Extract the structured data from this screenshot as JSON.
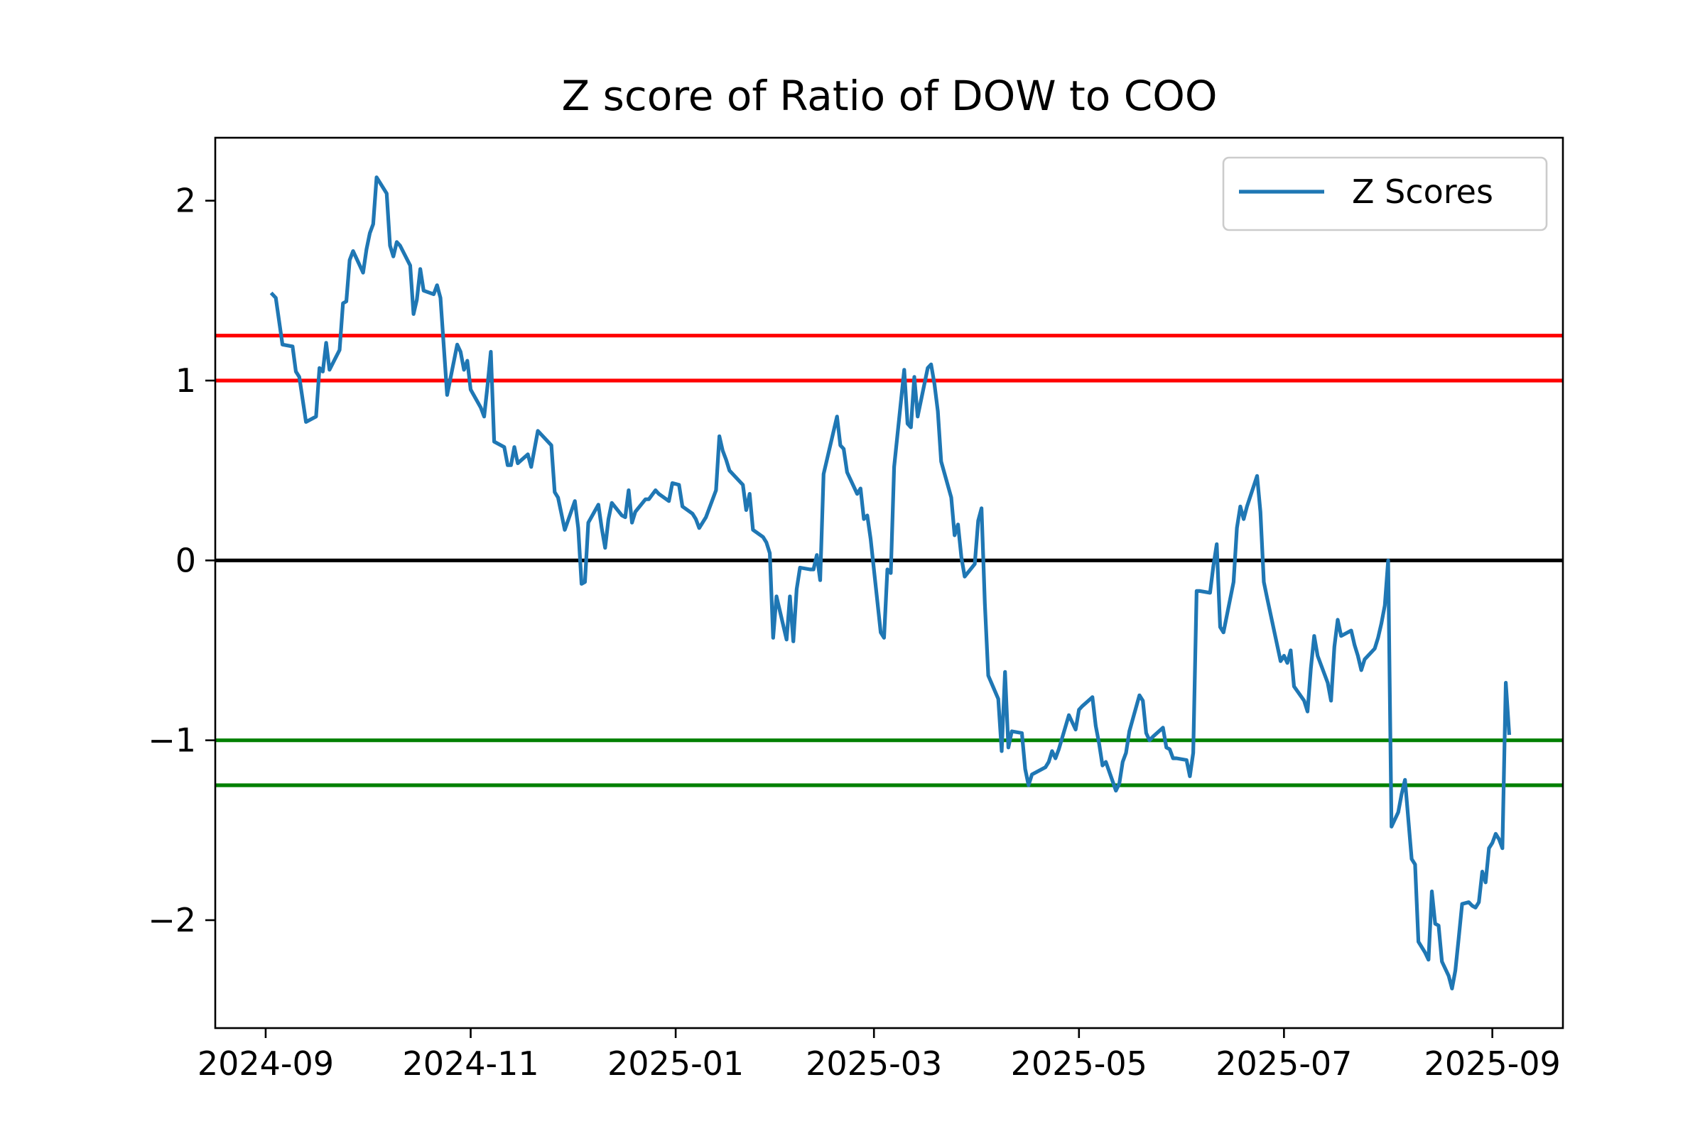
{
  "chart_data": {
    "type": "line",
    "title": "Z score of Ratio of DOW to COO",
    "xlabel": "",
    "ylabel": "",
    "xlim": [
      "2024-08-17",
      "2025-09-22"
    ],
    "ylim": [
      -2.6,
      2.35
    ],
    "grid": false,
    "legend": {
      "placement": "upper right",
      "entries": [
        "Z Scores"
      ]
    },
    "x_ticks": [
      "2024-09",
      "2024-11",
      "2025-01",
      "2025-03",
      "2025-05",
      "2025-07",
      "2025-09"
    ],
    "x_tick_dates": [
      "2024-09-01",
      "2024-11-01",
      "2025-01-01",
      "2025-03-01",
      "2025-05-01",
      "2025-07-01",
      "2025-09-01"
    ],
    "y_ticks": [
      2,
      1,
      0,
      -1,
      -2
    ],
    "y_tick_labels": [
      "2",
      "1",
      "0",
      "−1",
      "−2"
    ],
    "hlines": [
      {
        "y": 1.25,
        "color": "#ff0000"
      },
      {
        "y": 1.0,
        "color": "#ff0000"
      },
      {
        "y": 0.0,
        "color": "#000000"
      },
      {
        "y": -1.0,
        "color": "#008000"
      },
      {
        "y": -1.25,
        "color": "#008000"
      }
    ],
    "series": [
      {
        "name": "Z Scores",
        "color": "#1f77b4",
        "points": [
          [
            "2024-09-03",
            1.48
          ],
          [
            "2024-09-04",
            1.46
          ],
          [
            "2024-09-06",
            1.2
          ],
          [
            "2024-09-09",
            1.19
          ],
          [
            "2024-09-10",
            1.05
          ],
          [
            "2024-09-11",
            1.02
          ],
          [
            "2024-09-13",
            0.77
          ],
          [
            "2024-09-16",
            0.8
          ],
          [
            "2024-09-17",
            1.07
          ],
          [
            "2024-09-18",
            1.05
          ],
          [
            "2024-09-19",
            1.21
          ],
          [
            "2024-09-20",
            1.06
          ],
          [
            "2024-09-23",
            1.17
          ],
          [
            "2024-09-24",
            1.43
          ],
          [
            "2024-09-25",
            1.44
          ],
          [
            "2024-09-26",
            1.67
          ],
          [
            "2024-09-27",
            1.72
          ],
          [
            "2024-09-30",
            1.6
          ],
          [
            "2024-10-01",
            1.73
          ],
          [
            "2024-10-02",
            1.82
          ],
          [
            "2024-10-03",
            1.87
          ],
          [
            "2024-10-04",
            2.13
          ],
          [
            "2024-10-07",
            2.04
          ],
          [
            "2024-10-08",
            1.75
          ],
          [
            "2024-10-09",
            1.69
          ],
          [
            "2024-10-10",
            1.77
          ],
          [
            "2024-10-11",
            1.75
          ],
          [
            "2024-10-14",
            1.64
          ],
          [
            "2024-10-15",
            1.37
          ],
          [
            "2024-10-16",
            1.45
          ],
          [
            "2024-10-17",
            1.62
          ],
          [
            "2024-10-18",
            1.5
          ],
          [
            "2024-10-21",
            1.48
          ],
          [
            "2024-10-22",
            1.53
          ],
          [
            "2024-10-23",
            1.46
          ],
          [
            "2024-10-25",
            0.92
          ],
          [
            "2024-10-28",
            1.2
          ],
          [
            "2024-10-29",
            1.16
          ],
          [
            "2024-10-30",
            1.06
          ],
          [
            "2024-10-31",
            1.11
          ],
          [
            "2024-11-01",
            0.95
          ],
          [
            "2024-11-04",
            0.85
          ],
          [
            "2024-11-05",
            0.8
          ],
          [
            "2024-11-06",
            0.97
          ],
          [
            "2024-11-07",
            1.16
          ],
          [
            "2024-11-08",
            0.66
          ],
          [
            "2024-11-11",
            0.63
          ],
          [
            "2024-11-12",
            0.53
          ],
          [
            "2024-11-13",
            0.53
          ],
          [
            "2024-11-14",
            0.63
          ],
          [
            "2024-11-15",
            0.54
          ],
          [
            "2024-11-18",
            0.59
          ],
          [
            "2024-11-19",
            0.52
          ],
          [
            "2024-11-20",
            0.62
          ],
          [
            "2024-11-21",
            0.72
          ],
          [
            "2024-11-22",
            0.7
          ],
          [
            "2024-11-25",
            0.64
          ],
          [
            "2024-11-26",
            0.38
          ],
          [
            "2024-11-27",
            0.35
          ],
          [
            "2024-11-29",
            0.17
          ],
          [
            "2024-12-02",
            0.33
          ],
          [
            "2024-12-03",
            0.18
          ],
          [
            "2024-12-04",
            -0.13
          ],
          [
            "2024-12-05",
            -0.12
          ],
          [
            "2024-12-06",
            0.21
          ],
          [
            "2024-12-09",
            0.31
          ],
          [
            "2024-12-10",
            0.18
          ],
          [
            "2024-12-11",
            0.07
          ],
          [
            "2024-12-12",
            0.23
          ],
          [
            "2024-12-13",
            0.32
          ],
          [
            "2024-12-16",
            0.25
          ],
          [
            "2024-12-17",
            0.24
          ],
          [
            "2024-12-18",
            0.39
          ],
          [
            "2024-12-19",
            0.21
          ],
          [
            "2024-12-20",
            0.27
          ],
          [
            "2024-12-23",
            0.34
          ],
          [
            "2024-12-24",
            0.34
          ],
          [
            "2024-12-26",
            0.39
          ],
          [
            "2024-12-27",
            0.37
          ],
          [
            "2024-12-30",
            0.33
          ],
          [
            "2024-12-31",
            0.43
          ],
          [
            "2025-01-02",
            0.42
          ],
          [
            "2025-01-03",
            0.3
          ],
          [
            "2025-01-06",
            0.26
          ],
          [
            "2025-01-07",
            0.23
          ],
          [
            "2025-01-08",
            0.18
          ],
          [
            "2025-01-10",
            0.24
          ],
          [
            "2025-01-13",
            0.39
          ],
          [
            "2025-01-14",
            0.69
          ],
          [
            "2025-01-15",
            0.61
          ],
          [
            "2025-01-16",
            0.56
          ],
          [
            "2025-01-17",
            0.5
          ],
          [
            "2025-01-21",
            0.42
          ],
          [
            "2025-01-22",
            0.28
          ],
          [
            "2025-01-23",
            0.37
          ],
          [
            "2025-01-24",
            0.17
          ],
          [
            "2025-01-27",
            0.13
          ],
          [
            "2025-01-28",
            0.1
          ],
          [
            "2025-01-29",
            0.04
          ],
          [
            "2025-01-30",
            -0.43
          ],
          [
            "2025-01-31",
            -0.2
          ],
          [
            "2025-02-03",
            -0.44
          ],
          [
            "2025-02-04",
            -0.2
          ],
          [
            "2025-02-05",
            -0.45
          ],
          [
            "2025-02-06",
            -0.16
          ],
          [
            "2025-02-07",
            -0.04
          ],
          [
            "2025-02-10",
            -0.05
          ],
          [
            "2025-02-11",
            -0.05
          ],
          [
            "2025-02-12",
            0.03
          ],
          [
            "2025-02-13",
            -0.11
          ],
          [
            "2025-02-14",
            0.48
          ],
          [
            "2025-02-18",
            0.8
          ],
          [
            "2025-02-19",
            0.64
          ],
          [
            "2025-02-20",
            0.62
          ],
          [
            "2025-02-21",
            0.49
          ],
          [
            "2025-02-24",
            0.37
          ],
          [
            "2025-02-25",
            0.4
          ],
          [
            "2025-02-26",
            0.23
          ],
          [
            "2025-02-27",
            0.25
          ],
          [
            "2025-02-28",
            0.12
          ],
          [
            "2025-03-03",
            -0.4
          ],
          [
            "2025-03-04",
            -0.43
          ],
          [
            "2025-03-05",
            -0.05
          ],
          [
            "2025-03-06",
            -0.07
          ],
          [
            "2025-03-07",
            0.52
          ],
          [
            "2025-03-10",
            1.06
          ],
          [
            "2025-03-11",
            0.76
          ],
          [
            "2025-03-12",
            0.74
          ],
          [
            "2025-03-13",
            1.02
          ],
          [
            "2025-03-14",
            0.8
          ],
          [
            "2025-03-17",
            1.07
          ],
          [
            "2025-03-18",
            1.09
          ],
          [
            "2025-03-19",
            0.98
          ],
          [
            "2025-03-20",
            0.83
          ],
          [
            "2025-03-21",
            0.55
          ],
          [
            "2025-03-24",
            0.35
          ],
          [
            "2025-03-25",
            0.14
          ],
          [
            "2025-03-26",
            0.2
          ],
          [
            "2025-03-27",
            0.02
          ],
          [
            "2025-03-28",
            -0.09
          ],
          [
            "2025-03-31",
            -0.02
          ],
          [
            "2025-04-01",
            0.22
          ],
          [
            "2025-04-02",
            0.29
          ],
          [
            "2025-04-03",
            -0.24
          ],
          [
            "2025-04-04",
            -0.64
          ],
          [
            "2025-04-07",
            -0.77
          ],
          [
            "2025-04-08",
            -1.06
          ],
          [
            "2025-04-09",
            -0.62
          ],
          [
            "2025-04-10",
            -1.04
          ],
          [
            "2025-04-11",
            -0.95
          ],
          [
            "2025-04-14",
            -0.96
          ],
          [
            "2025-04-15",
            -1.16
          ],
          [
            "2025-04-16",
            -1.25
          ],
          [
            "2025-04-17",
            -1.19
          ],
          [
            "2025-04-21",
            -1.15
          ],
          [
            "2025-04-22",
            -1.12
          ],
          [
            "2025-04-23",
            -1.06
          ],
          [
            "2025-04-24",
            -1.1
          ],
          [
            "2025-04-25",
            -1.05
          ],
          [
            "2025-04-28",
            -0.86
          ],
          [
            "2025-04-29",
            -0.9
          ],
          [
            "2025-04-30",
            -0.94
          ],
          [
            "2025-05-01",
            -0.83
          ],
          [
            "2025-05-02",
            -0.81
          ],
          [
            "2025-05-05",
            -0.76
          ],
          [
            "2025-05-06",
            -0.92
          ],
          [
            "2025-05-07",
            -1.02
          ],
          [
            "2025-05-08",
            -1.14
          ],
          [
            "2025-05-09",
            -1.12
          ],
          [
            "2025-05-12",
            -1.28
          ],
          [
            "2025-05-13",
            -1.24
          ],
          [
            "2025-05-14",
            -1.12
          ],
          [
            "2025-05-15",
            -1.07
          ],
          [
            "2025-05-16",
            -0.95
          ],
          [
            "2025-05-19",
            -0.75
          ],
          [
            "2025-05-20",
            -0.78
          ],
          [
            "2025-05-21",
            -0.96
          ],
          [
            "2025-05-22",
            -1.0
          ],
          [
            "2025-05-23",
            -0.98
          ],
          [
            "2025-05-26",
            -0.93
          ],
          [
            "2025-05-27",
            -1.04
          ],
          [
            "2025-05-28",
            -1.05
          ],
          [
            "2025-05-29",
            -1.1
          ],
          [
            "2025-05-30",
            -1.1
          ],
          [
            "2025-06-02",
            -1.11
          ],
          [
            "2025-06-03",
            -1.2
          ],
          [
            "2025-06-04",
            -1.07
          ],
          [
            "2025-06-05",
            -0.17
          ],
          [
            "2025-06-06",
            -0.17
          ],
          [
            "2025-06-09",
            -0.18
          ],
          [
            "2025-06-10",
            -0.03
          ],
          [
            "2025-06-11",
            0.09
          ],
          [
            "2025-06-12",
            -0.37
          ],
          [
            "2025-06-13",
            -0.4
          ],
          [
            "2025-06-16",
            -0.12
          ],
          [
            "2025-06-17",
            0.18
          ],
          [
            "2025-06-18",
            0.3
          ],
          [
            "2025-06-19",
            0.23
          ],
          [
            "2025-06-20",
            0.3
          ],
          [
            "2025-06-23",
            0.47
          ],
          [
            "2025-06-24",
            0.27
          ],
          [
            "2025-06-25",
            -0.12
          ],
          [
            "2025-06-26",
            -0.21
          ],
          [
            "2025-06-30",
            -0.56
          ],
          [
            "2025-07-01",
            -0.53
          ],
          [
            "2025-07-02",
            -0.57
          ],
          [
            "2025-07-03",
            -0.5
          ],
          [
            "2025-07-04",
            -0.7
          ],
          [
            "2025-07-07",
            -0.78
          ],
          [
            "2025-07-08",
            -0.84
          ],
          [
            "2025-07-09",
            -0.6
          ],
          [
            "2025-07-10",
            -0.42
          ],
          [
            "2025-07-11",
            -0.53
          ],
          [
            "2025-07-14",
            -0.68
          ],
          [
            "2025-07-15",
            -0.78
          ],
          [
            "2025-07-16",
            -0.48
          ],
          [
            "2025-07-17",
            -0.33
          ],
          [
            "2025-07-18",
            -0.42
          ],
          [
            "2025-07-21",
            -0.39
          ],
          [
            "2025-07-22",
            -0.47
          ],
          [
            "2025-07-23",
            -0.53
          ],
          [
            "2025-07-24",
            -0.61
          ],
          [
            "2025-07-25",
            -0.55
          ],
          [
            "2025-07-28",
            -0.49
          ],
          [
            "2025-07-29",
            -0.43
          ],
          [
            "2025-07-30",
            -0.35
          ],
          [
            "2025-07-31",
            -0.25
          ],
          [
            "2025-08-01",
            0.0
          ],
          [
            "2025-08-02",
            -1.48
          ],
          [
            "2025-08-04",
            -1.4
          ],
          [
            "2025-08-05",
            -1.3
          ],
          [
            "2025-08-06",
            -1.22
          ],
          [
            "2025-08-07",
            -1.44
          ],
          [
            "2025-08-08",
            -1.66
          ],
          [
            "2025-08-09",
            -1.69
          ],
          [
            "2025-08-10",
            -2.12
          ],
          [
            "2025-08-12",
            -2.18
          ],
          [
            "2025-08-13",
            -2.22
          ],
          [
            "2025-08-14",
            -1.84
          ],
          [
            "2025-08-15",
            -2.02
          ],
          [
            "2025-08-16",
            -2.03
          ],
          [
            "2025-08-17",
            -2.23
          ],
          [
            "2025-08-19",
            -2.31
          ],
          [
            "2025-08-20",
            -2.38
          ],
          [
            "2025-08-21",
            -2.28
          ],
          [
            "2025-08-22",
            -2.1
          ],
          [
            "2025-08-23",
            -1.91
          ],
          [
            "2025-08-25",
            -1.9
          ],
          [
            "2025-08-26",
            -1.92
          ],
          [
            "2025-08-27",
            -1.93
          ],
          [
            "2025-08-28",
            -1.9
          ],
          [
            "2025-08-29",
            -1.73
          ],
          [
            "2025-08-30",
            -1.79
          ],
          [
            "2025-08-31",
            -1.6
          ],
          [
            "2025-09-01",
            -1.57
          ],
          [
            "2025-09-02",
            -1.52
          ],
          [
            "2025-09-03",
            -1.55
          ],
          [
            "2025-09-04",
            -1.6
          ],
          [
            "2025-09-05",
            -0.68
          ],
          [
            "2025-09-06",
            -0.96
          ]
        ]
      }
    ]
  }
}
